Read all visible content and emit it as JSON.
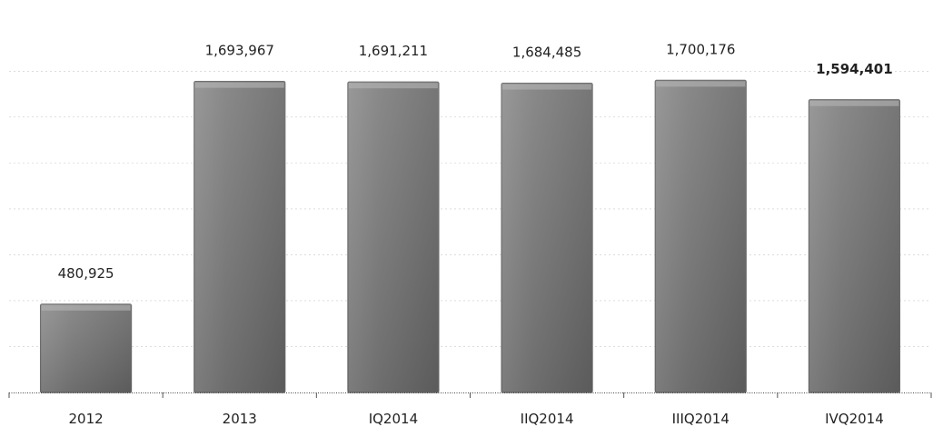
{
  "chart_data": {
    "type": "bar",
    "title": "",
    "xlabel": "",
    "ylabel": "",
    "categories": [
      "2012",
      "2013",
      "IQ2014",
      "IIQ2014",
      "IIIQ2014",
      "IVQ2014"
    ],
    "values": [
      480925,
      1693967,
      1691211,
      1684485,
      1700176,
      1594401
    ],
    "value_labels": [
      "480,925",
      "1,693,967",
      "1,691,211",
      "1,684,485",
      "1,700,176",
      "1,594,401"
    ],
    "bold_label_index": 5,
    "ylim": [
      0,
      1900000
    ],
    "grid": true,
    "legend": "none",
    "colors": {
      "bar_light": "#9a9a9a",
      "bar_mid": "#7a7a7a",
      "bar_dark": "#5a5a5a",
      "bar_edge": "#6b6b6b"
    }
  }
}
